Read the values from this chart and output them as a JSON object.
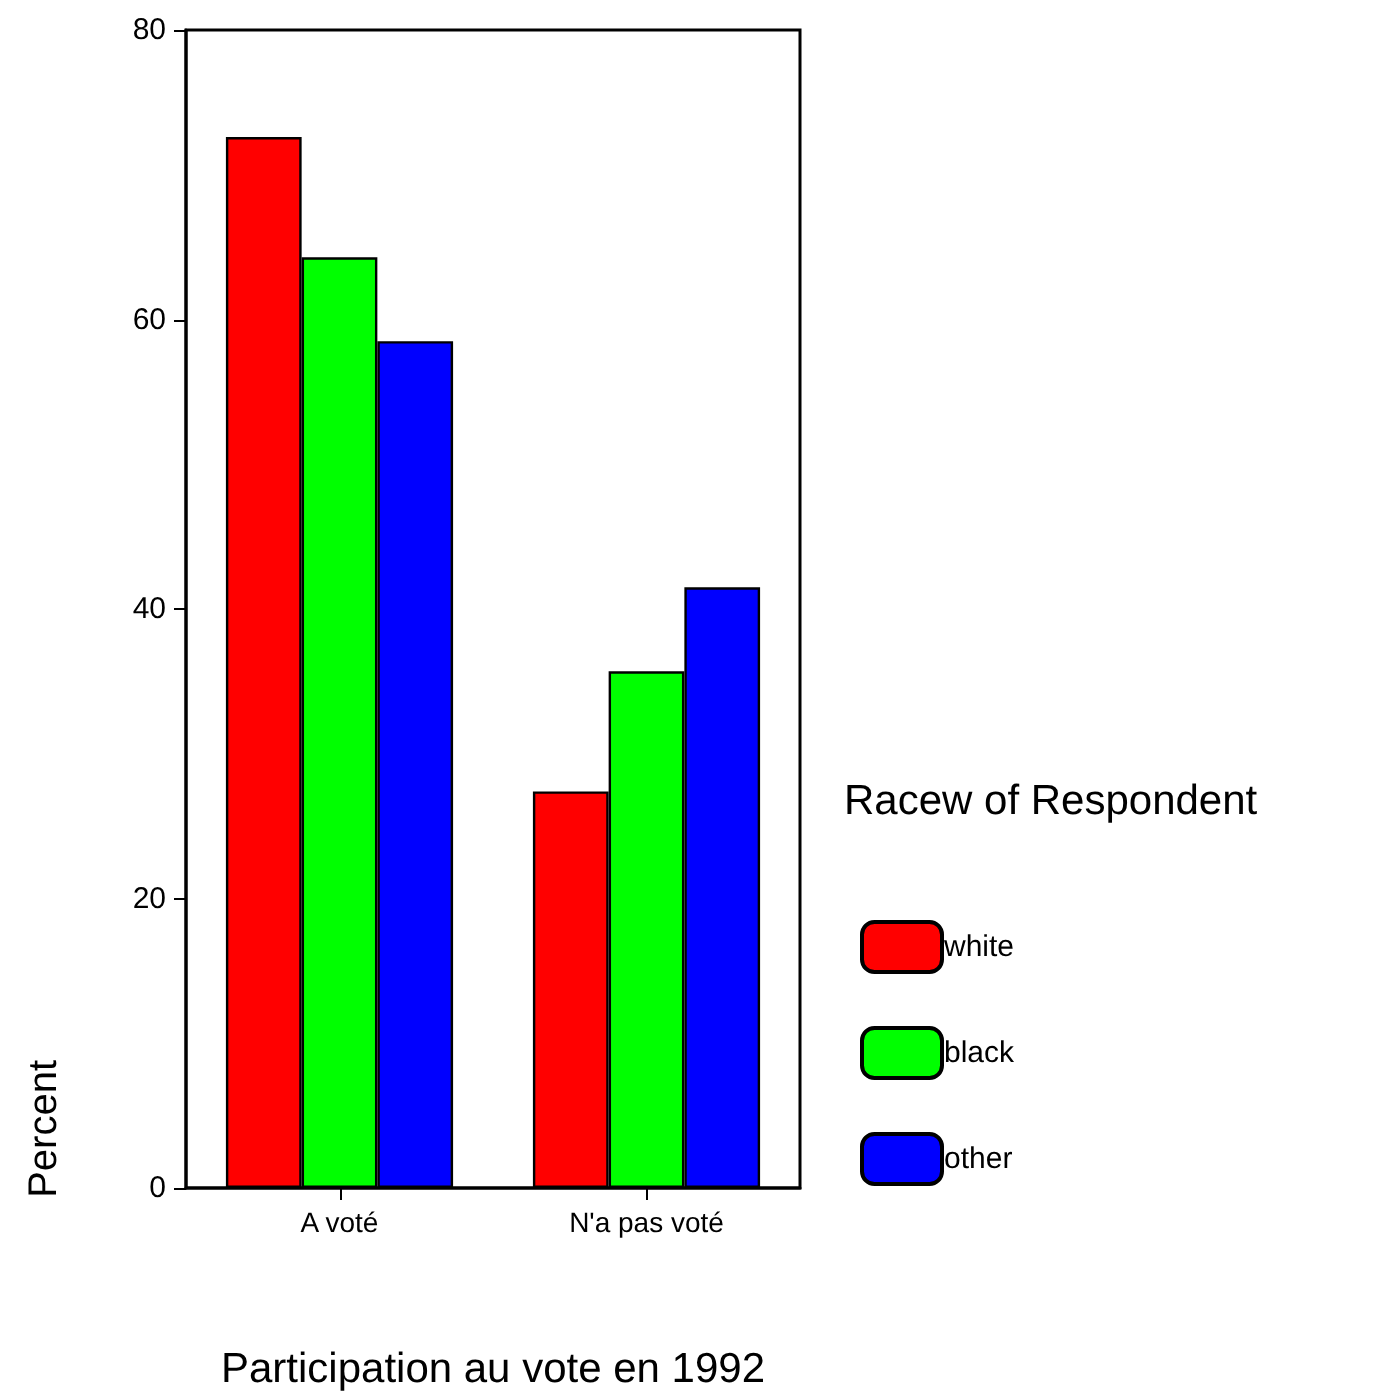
{
  "chart_data": {
    "type": "bar",
    "xlabel": "Participation au vote en 1992",
    "ylabel": "Percent",
    "legend_title": "Racew of Respondent",
    "categories": [
      "A voté",
      "N'a pas voté"
    ],
    "series": [
      {
        "name": "white",
        "color": "#ff0000",
        "values": [
          72.6,
          27.4
        ]
      },
      {
        "name": "black",
        "color": "#00ff00",
        "values": [
          64.3,
          35.7
        ]
      },
      {
        "name": "other",
        "color": "#0000ff",
        "values": [
          58.5,
          41.5
        ]
      }
    ],
    "ylim": [
      0,
      80
    ],
    "yticks": [
      0,
      20,
      40,
      60,
      80
    ],
    "grid": false,
    "legend": "right"
  }
}
